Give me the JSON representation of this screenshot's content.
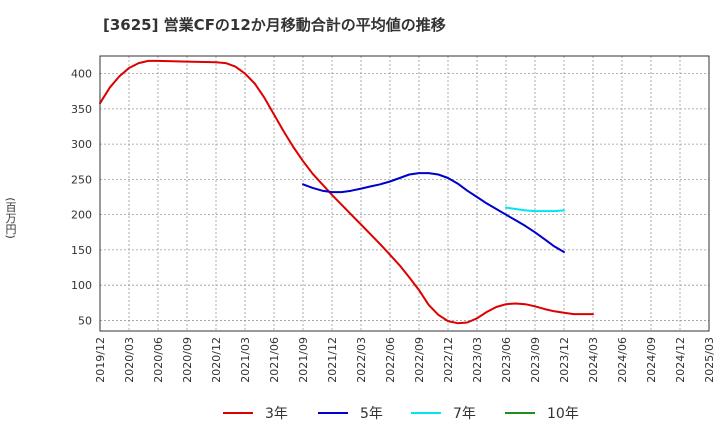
{
  "chart_data": {
    "type": "line",
    "title": "[3625]  営業CFの12か月移動合計の平均値の推移",
    "ylabel": "(百万円)",
    "xlabel": "",
    "ylim": [
      35,
      425
    ],
    "yticks": [
      50,
      100,
      150,
      200,
      250,
      300,
      350,
      400
    ],
    "xticks": [
      "2019/12",
      "2020/03",
      "2020/06",
      "2020/09",
      "2020/12",
      "2021/03",
      "2021/06",
      "2021/09",
      "2021/12",
      "2022/03",
      "2022/06",
      "2022/09",
      "2022/12",
      "2023/03",
      "2023/06",
      "2023/09",
      "2023/12",
      "2024/03",
      "2024/06",
      "2024/09",
      "2024/12",
      "2025/03"
    ],
    "grid": true,
    "legend_position": "bottom",
    "series": [
      {
        "name": "3年",
        "color": "#dd0000",
        "points": [
          [
            "2019/12",
            358
          ],
          [
            "2020/01",
            380
          ],
          [
            "2020/02",
            396
          ],
          [
            "2020/03",
            408
          ],
          [
            "2020/04",
            415
          ],
          [
            "2020/05",
            418
          ],
          [
            "2020/06",
            418
          ],
          [
            "2020/09",
            417
          ],
          [
            "2020/12",
            416
          ],
          [
            "2021/01",
            415
          ],
          [
            "2021/02",
            410
          ],
          [
            "2021/03",
            400
          ],
          [
            "2021/04",
            386
          ],
          [
            "2021/05",
            366
          ],
          [
            "2021/06",
            342
          ],
          [
            "2021/07",
            318
          ],
          [
            "2021/08",
            296
          ],
          [
            "2021/09",
            276
          ],
          [
            "2021/10",
            258
          ],
          [
            "2021/11",
            243
          ],
          [
            "2021/12",
            228
          ],
          [
            "2022/01",
            214
          ],
          [
            "2022/02",
            200
          ],
          [
            "2022/03",
            186
          ],
          [
            "2022/04",
            172
          ],
          [
            "2022/05",
            158
          ],
          [
            "2022/06",
            143
          ],
          [
            "2022/07",
            128
          ],
          [
            "2022/08",
            111
          ],
          [
            "2022/09",
            93
          ],
          [
            "2022/10",
            72
          ],
          [
            "2022/11",
            58
          ],
          [
            "2022/12",
            49
          ],
          [
            "2023/01",
            46
          ],
          [
            "2023/02",
            47
          ],
          [
            "2023/03",
            53
          ],
          [
            "2023/04",
            62
          ],
          [
            "2023/05",
            69
          ],
          [
            "2023/06",
            73
          ],
          [
            "2023/07",
            74
          ],
          [
            "2023/08",
            73
          ],
          [
            "2023/09",
            70
          ],
          [
            "2023/10",
            66
          ],
          [
            "2023/11",
            63
          ],
          [
            "2023/12",
            61
          ],
          [
            "2024/01",
            59
          ],
          [
            "2024/02",
            59
          ],
          [
            "2024/03",
            59
          ]
        ]
      },
      {
        "name": "5年",
        "color": "#0000cc",
        "points": [
          [
            "2021/09",
            243
          ],
          [
            "2021/10",
            238
          ],
          [
            "2021/11",
            234
          ],
          [
            "2021/12",
            232
          ],
          [
            "2022/01",
            232
          ],
          [
            "2022/02",
            234
          ],
          [
            "2022/03",
            237
          ],
          [
            "2022/04",
            240
          ],
          [
            "2022/05",
            243
          ],
          [
            "2022/06",
            247
          ],
          [
            "2022/07",
            252
          ],
          [
            "2022/08",
            257
          ],
          [
            "2022/09",
            259
          ],
          [
            "2022/10",
            259
          ],
          [
            "2022/11",
            257
          ],
          [
            "2022/12",
            252
          ],
          [
            "2023/01",
            244
          ],
          [
            "2023/02",
            234
          ],
          [
            "2023/03",
            225
          ],
          [
            "2023/04",
            216
          ],
          [
            "2023/05",
            208
          ],
          [
            "2023/06",
            200
          ],
          [
            "2023/07",
            192
          ],
          [
            "2023/08",
            184
          ],
          [
            "2023/09",
            175
          ],
          [
            "2023/10",
            165
          ],
          [
            "2023/11",
            155
          ],
          [
            "2023/12",
            147
          ]
        ]
      },
      {
        "name": "7年",
        "color": "#00e5ee",
        "points": [
          [
            "2023/06",
            210
          ],
          [
            "2023/07",
            208
          ],
          [
            "2023/08",
            206
          ],
          [
            "2023/09",
            205
          ],
          [
            "2023/10",
            205
          ],
          [
            "2023/11",
            205
          ],
          [
            "2023/12",
            206
          ]
        ]
      },
      {
        "name": "10年",
        "color": "#228b22",
        "points": []
      }
    ]
  }
}
